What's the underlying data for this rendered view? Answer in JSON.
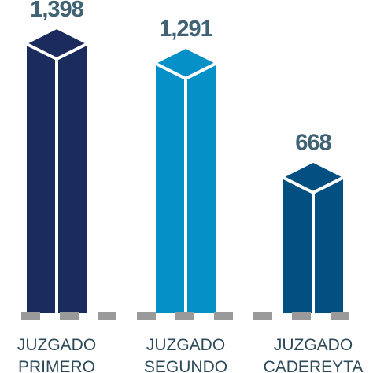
{
  "chart_data": {
    "type": "bar3d",
    "categories": [
      [
        "JUZGADO",
        "PRIMERO"
      ],
      [
        "JUZGADO",
        "SEGUNDO"
      ],
      [
        "JUZGADO",
        "CADEREYTA"
      ]
    ],
    "values": [
      1398,
      1291,
      668
    ],
    "value_labels": [
      "1,398",
      "1,291",
      "668"
    ],
    "colors": [
      "#1c2b5e",
      "#0591c8",
      "#024f82"
    ]
  }
}
